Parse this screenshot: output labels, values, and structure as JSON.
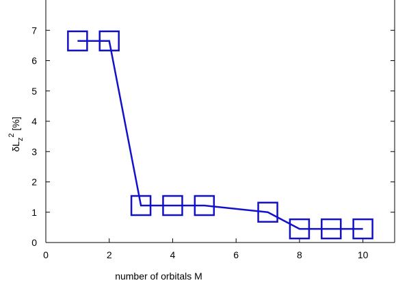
{
  "chart_data": {
    "type": "line",
    "title": "",
    "xlabel": "number of orbitals M",
    "ylabel_base": "δL",
    "ylabel_sub": "z",
    "ylabel_sup": "2",
    "ylabel_unit": " [%]",
    "xlim": [
      0,
      11
    ],
    "ylim": [
      0,
      8
    ],
    "x_ticks": [
      0,
      2,
      4,
      6,
      8,
      10
    ],
    "y_ticks": [
      0,
      1,
      2,
      3,
      4,
      5,
      6,
      7
    ],
    "grid": false,
    "legend": "none",
    "series": [
      {
        "color": "#1111cc",
        "marker": "square",
        "x": [
          1,
          2,
          3,
          4,
          5,
          7,
          8,
          9,
          10
        ],
        "y": [
          6.65,
          6.65,
          1.22,
          1.22,
          1.22,
          1.0,
          0.45,
          0.45,
          0.45
        ]
      }
    ]
  }
}
